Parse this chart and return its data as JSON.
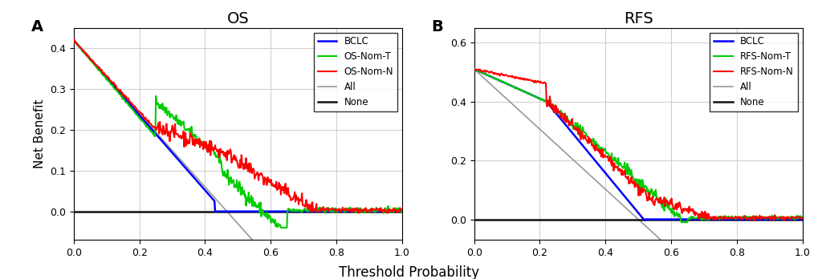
{
  "panel_A": {
    "title": "OS",
    "label": "A",
    "ylim": [
      -0.07,
      0.45
    ],
    "yticks": [
      0.0,
      0.1,
      0.2,
      0.3,
      0.4
    ],
    "legend_labels": [
      "BCLC",
      "OS-Nom-T",
      "OS-Nom-N",
      "All",
      "None"
    ]
  },
  "panel_B": {
    "title": "RFS",
    "label": "B",
    "ylim": [
      -0.07,
      0.65
    ],
    "yticks": [
      0.0,
      0.2,
      0.4,
      0.6
    ],
    "legend_labels": [
      "BCLC",
      "RFS-Nom-T",
      "RFS-Nom-N",
      "All",
      "None"
    ]
  },
  "ylabel": "Net Benefit",
  "xlabel": "Threshold Probability",
  "xlim": [
    0.0,
    1.0
  ],
  "xticks": [
    0.0,
    0.2,
    0.4,
    0.6,
    0.8,
    1.0
  ],
  "background_color": "#ffffff",
  "grid_color": "#cccccc",
  "line_colors": {
    "BCLC": "#0000ff",
    "nom_t": "#00cc00",
    "nom_n": "#ff0000",
    "all": "#999999",
    "none": "#111111"
  }
}
